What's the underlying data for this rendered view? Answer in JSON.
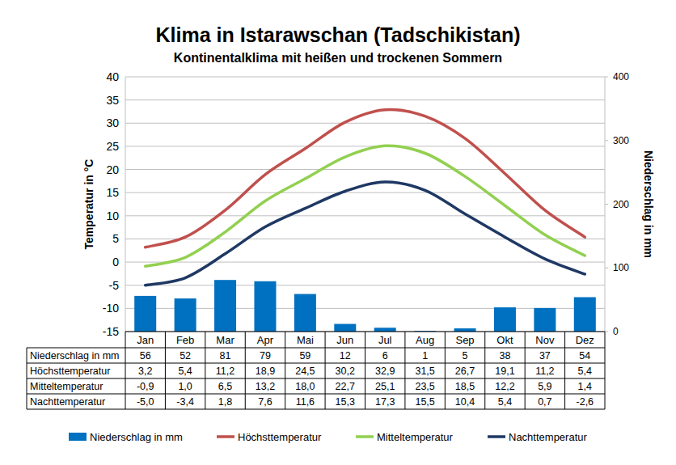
{
  "chart_data": {
    "type": "bar",
    "title": "Klima in Istarawschan (Tadschikistan)",
    "subtitle": "Kontinentalklima mit heißen und trockenen Sommern",
    "y_label": "Temperatur in °C",
    "y2_label": "Niederschlag in mm",
    "categories": [
      "Jan",
      "Feb",
      "Mar",
      "Apr",
      "Mai",
      "Jun",
      "Jul",
      "Aug",
      "Sep",
      "Okt",
      "Nov",
      "Dez"
    ],
    "ylim": [
      -15,
      40
    ],
    "yticks": [
      -15,
      -10,
      -5,
      0,
      5,
      10,
      15,
      20,
      25,
      30,
      35,
      40
    ],
    "y2lim": [
      0,
      400
    ],
    "y2ticks": [
      0,
      100,
      200,
      300,
      400
    ],
    "grid": true,
    "legend": "bottom",
    "series": [
      {
        "name": "Niederschlag in mm",
        "type": "bar",
        "axis": "y2",
        "color": "#0070c0",
        "values": [
          56,
          52,
          81,
          79,
          59,
          12,
          6,
          1,
          5,
          38,
          37,
          54
        ]
      },
      {
        "name": "Höchsttemperatur",
        "type": "line",
        "line_style": "smooth",
        "color": "#c0504d",
        "values": [
          3.2,
          5.4,
          11.2,
          18.9,
          24.5,
          30.2,
          32.9,
          31.5,
          26.7,
          19.1,
          11.2,
          5.4
        ],
        "value_labels": [
          "3,2",
          "5,4",
          "11,2",
          "18,9",
          "24,5",
          "30,2",
          "32,9",
          "31,5",
          "26,7",
          "19,1",
          "11,2",
          "5,4"
        ]
      },
      {
        "name": "Mitteltemperatur",
        "type": "line",
        "line_style": "smooth",
        "color": "#92d050",
        "values": [
          -0.9,
          1.0,
          6.5,
          13.2,
          18.0,
          22.7,
          25.1,
          23.5,
          18.5,
          12.2,
          5.9,
          1.4
        ],
        "value_labels": [
          "-0,9",
          "1,0",
          "6,5",
          "13,2",
          "18,0",
          "22,7",
          "25,1",
          "23,5",
          "18,5",
          "12,2",
          "5,9",
          "1,4"
        ]
      },
      {
        "name": "Nachttemperatur",
        "type": "line",
        "line_style": "smooth",
        "color": "#1f3864",
        "values": [
          -5.0,
          -3.4,
          1.8,
          7.6,
          11.6,
          15.3,
          17.3,
          15.5,
          10.4,
          5.4,
          0.7,
          -2.6
        ],
        "value_labels": [
          "-5,0",
          "-3,4",
          "1,8",
          "7,6",
          "11,6",
          "15,3",
          "17,3",
          "15,5",
          "10,4",
          "5,4",
          "0,7",
          "-2,6"
        ]
      }
    ]
  }
}
